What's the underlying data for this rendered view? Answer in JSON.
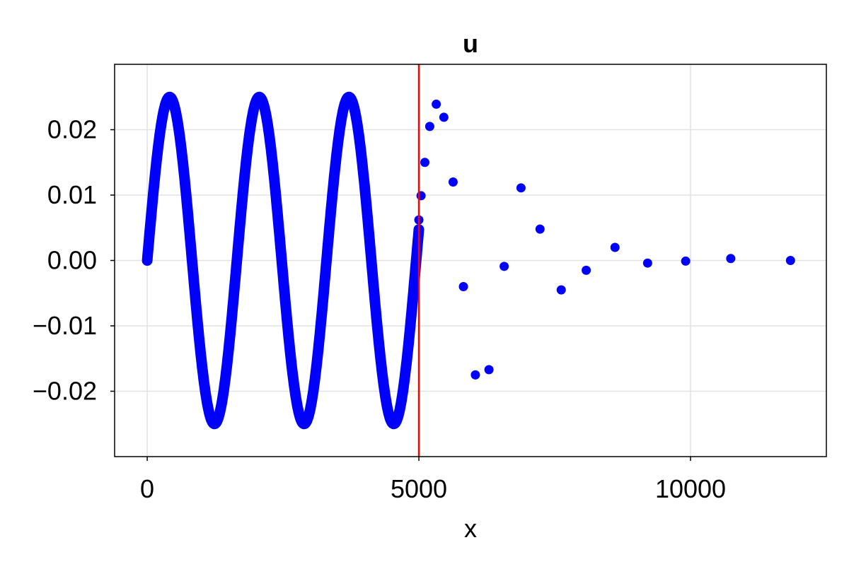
{
  "chart_data": {
    "type": "scatter",
    "title": "u",
    "xlabel": "x",
    "ylabel": "",
    "xlim": [
      -600,
      12500
    ],
    "ylim": [
      -0.03,
      0.03
    ],
    "x_ticks": [
      0,
      5000,
      10000
    ],
    "x_tick_labels": [
      "0",
      "5000",
      "10000"
    ],
    "y_ticks": [
      -0.02,
      -0.01,
      0.0,
      0.01,
      0.02
    ],
    "y_tick_labels": [
      "−0.02",
      "−0.01",
      "0.00",
      "0.01",
      "0.02"
    ],
    "grid": true,
    "colors": {
      "points": "#0000ff",
      "vline": "#ff0000",
      "grid": "#e2e2e2"
    },
    "series": [
      {
        "kind": "dense-sine",
        "description": "densely sampled wave",
        "x_start": 0,
        "x_end": 5000,
        "amplitude": 0.025,
        "period": 1650
      },
      {
        "kind": "scatter",
        "points": [
          {
            "x": 5000,
            "y": 0.0062
          },
          {
            "x": 5040,
            "y": 0.0099
          },
          {
            "x": 5110,
            "y": 0.015
          },
          {
            "x": 5200,
            "y": 0.0205
          },
          {
            "x": 5320,
            "y": 0.0239
          },
          {
            "x": 5460,
            "y": 0.0219
          },
          {
            "x": 5630,
            "y": 0.012
          },
          {
            "x": 5820,
            "y": -0.004
          },
          {
            "x": 6040,
            "y": -0.0175
          },
          {
            "x": 6290,
            "y": -0.0167
          },
          {
            "x": 6570,
            "y": -0.0009
          },
          {
            "x": 6880,
            "y": 0.0111
          },
          {
            "x": 7230,
            "y": 0.0048
          },
          {
            "x": 7620,
            "y": -0.0045
          },
          {
            "x": 8080,
            "y": -0.0015
          },
          {
            "x": 8610,
            "y": 0.002
          },
          {
            "x": 9210,
            "y": -0.0004
          },
          {
            "x": 9910,
            "y": -0.0001
          },
          {
            "x": 10740,
            "y": 0.0003
          },
          {
            "x": 11840,
            "y": 0.0
          }
        ]
      }
    ],
    "vline": {
      "x": 5000
    }
  }
}
